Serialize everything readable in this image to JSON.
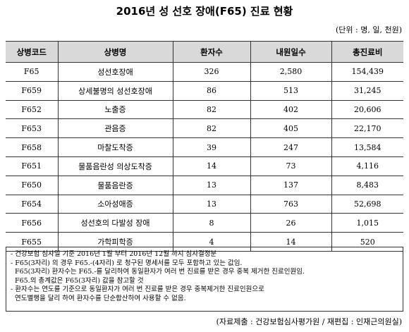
{
  "header": {
    "title": "2016년 성 선호 장애(F65) 진료 현황",
    "unit": "(단위 : 명, 일, 천원)"
  },
  "table": {
    "columns": [
      "상병코드",
      "상병명",
      "환자수",
      "내원일수",
      "총진료비"
    ],
    "rows": [
      [
        "F65",
        "성선호장애",
        "326",
        "2,580",
        "154,439"
      ],
      [
        "F659",
        "상세불명의 성선호장애",
        "86",
        "513",
        "31,245"
      ],
      [
        "F652",
        "노출증",
        "82",
        "402",
        "20,606"
      ],
      [
        "F653",
        "관음증",
        "82",
        "405",
        "22,170"
      ],
      [
        "F658",
        "마찰도착증",
        "39",
        "247",
        "13,584"
      ],
      [
        "F651",
        "물품음란성 의상도착증",
        "14",
        "73",
        "4,116"
      ],
      [
        "F650",
        "물품음란증",
        "13",
        "137",
        "8,483"
      ],
      [
        "F654",
        "소아성애증",
        "13",
        "763",
        "52,698"
      ],
      [
        "F656",
        "성선호의 다발성 장애",
        "8",
        "26",
        "1,015"
      ],
      [
        "F655",
        "가학피학증",
        "4",
        "14",
        "520"
      ]
    ]
  },
  "notes": [
    "- 건강보험 심사일 기준 2016년 1월 부터 2016년 12월 까지 심사결정분",
    "- F65(3자리) 의 경우 F65.-(4자리) 로 청구된 명세서를 모두 포함하고 있는 값임.",
    "F65(3자리) 환자수는 F65.-를 달리하여 동일환자가 여러 번 진료를 받은 경우 중복 제거한 진료인원임.",
    "F65.의 총계값은 F65(3자리) 값을 참고할 것",
    "- 환자수는 연도를 기준으로 동일환자가 여러 번 진료를 받은 경우 중복제거한 진료인원으로",
    "연도별행을 달리 하여 환자수를 단순합산하여 사용할 수 없음."
  ],
  "source": "(자료제출 : 건강보험심사평가원 / 재편집 : 인재근의원실)"
}
